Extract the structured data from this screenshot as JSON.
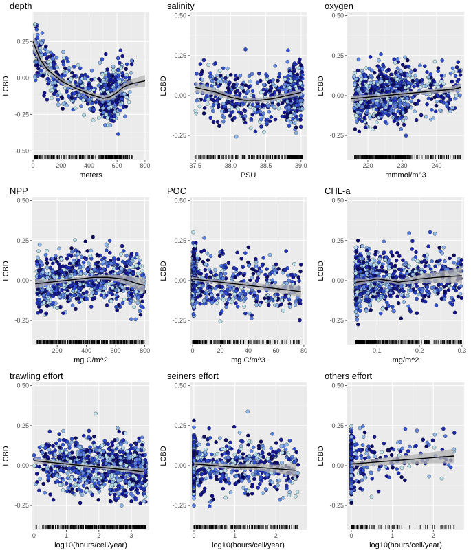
{
  "figure": {
    "ylabel": "LCBD",
    "colors": {
      "panel_bg": "#ebebeb",
      "grid_major": "#ffffff",
      "grid_minor": "#f5f5f5",
      "point_palette": [
        "#0a0a66",
        "#13138c",
        "#1c2bb0",
        "#2e4fd0",
        "#5a80e0",
        "#8fb8ea",
        "#b9dfe8"
      ],
      "point_outline": "#1a1a1a",
      "smooth_line": "#000000",
      "ribbon": "#b3b3b3"
    }
  },
  "chart_data": [
    {
      "type": "scatter",
      "title": "depth",
      "xlabel": "meters",
      "ylabel": "LCBD",
      "xlim": [
        -5,
        830
      ],
      "ylim": [
        -0.56,
        0.45
      ],
      "xticks": [
        0,
        200,
        400,
        600,
        800
      ],
      "yticks": [
        -0.5,
        -0.25,
        0,
        0.25
      ],
      "ytick_labels": [
        "-0.50",
        "-0.25",
        "0.00",
        "0.25"
      ],
      "n_points": 700,
      "x_distribution": "mixed_depth",
      "smooth": {
        "x": [
          0,
          50,
          100,
          150,
          200,
          300,
          400,
          500,
          550,
          600,
          650,
          700,
          750,
          800
        ],
        "y": [
          0.25,
          0.13,
          0.06,
          0.02,
          -0.02,
          -0.07,
          -0.11,
          -0.14,
          -0.13,
          -0.1,
          -0.06,
          -0.04,
          -0.03,
          -0.02
        ],
        "se": [
          0.06,
          0.03,
          0.025,
          0.02,
          0.02,
          0.015,
          0.015,
          0.02,
          0.02,
          0.02,
          0.025,
          0.03,
          0.035,
          0.04
        ]
      }
    },
    {
      "type": "scatter",
      "title": "salinity",
      "xlabel": "PSU",
      "ylabel": "LCBD",
      "xlim": [
        37.42,
        39.08
      ],
      "ylim": [
        -0.4,
        0.52
      ],
      "xticks": [
        37.5,
        38.0,
        38.5,
        39.0
      ],
      "xtick_labels": [
        "37.5",
        "38.0",
        "38.5",
        "39.0"
      ],
      "yticks": [
        -0.25,
        0,
        0.25,
        0.5
      ],
      "ytick_labels": [
        "-0.25",
        "0.00",
        "0.25",
        "0.50"
      ],
      "n_points": 650,
      "x_distribution": "salinity",
      "smooth": {
        "x": [
          37.5,
          37.8,
          38.0,
          38.2,
          38.4,
          38.6,
          38.8,
          39.0
        ],
        "y": [
          0.05,
          0.02,
          -0.01,
          -0.03,
          -0.03,
          -0.02,
          0.0,
          0.02
        ],
        "se": [
          0.03,
          0.02,
          0.015,
          0.015,
          0.015,
          0.015,
          0.015,
          0.02
        ]
      }
    },
    {
      "type": "scatter",
      "title": "oxygen",
      "xlabel": "mmmol/m^3",
      "ylabel": "LCBD",
      "xlim": [
        214,
        248
      ],
      "ylim": [
        -0.4,
        0.52
      ],
      "xticks": [
        220,
        230,
        240
      ],
      "yticks": [
        -0.25,
        0,
        0.25,
        0.5
      ],
      "ytick_labels": [
        "-0.25",
        "0.00",
        "0.25",
        "0.50"
      ],
      "n_points": 800,
      "x_distribution": "oxygen",
      "smooth": {
        "x": [
          215,
          220,
          225,
          230,
          235,
          240,
          245,
          247
        ],
        "y": [
          -0.02,
          -0.01,
          0.0,
          0.01,
          0.02,
          0.03,
          0.04,
          0.05
        ],
        "se": [
          0.02,
          0.015,
          0.012,
          0.012,
          0.012,
          0.015,
          0.02,
          0.025
        ]
      }
    },
    {
      "type": "scatter",
      "title": "NPP",
      "xlabel": "mg C/m^2",
      "ylabel": "LCBD",
      "xlim": [
        30,
        830
      ],
      "ylim": [
        -0.4,
        0.52
      ],
      "xticks": [
        200,
        400,
        600,
        800
      ],
      "yticks": [
        -0.25,
        0,
        0.25,
        0.5
      ],
      "ytick_labels": [
        "-0.25",
        "0.00",
        "0.25",
        "0.50"
      ],
      "n_points": 800,
      "x_distribution": "npp",
      "smooth": {
        "x": [
          50,
          150,
          250,
          350,
          450,
          550,
          650,
          750,
          800
        ],
        "y": [
          -0.02,
          -0.01,
          0.0,
          0.01,
          0.02,
          0.02,
          0.01,
          -0.02,
          -0.03
        ],
        "se": [
          0.03,
          0.015,
          0.012,
          0.012,
          0.012,
          0.015,
          0.025,
          0.04,
          0.05
        ]
      }
    },
    {
      "type": "scatter",
      "title": "POC",
      "xlabel": "mg C/m^3",
      "ylabel": "LCBD",
      "xlim": [
        -2,
        82
      ],
      "ylim": [
        -0.4,
        0.52
      ],
      "xticks": [
        0,
        20,
        40,
        60,
        80
      ],
      "yticks": [
        -0.25,
        0,
        0.25,
        0.5
      ],
      "ytick_labels": [
        "-0.25",
        "0.00",
        "0.25",
        "0.50"
      ],
      "n_points": 800,
      "x_distribution": "poc",
      "smooth": {
        "x": [
          0,
          10,
          20,
          30,
          40,
          50,
          60,
          70,
          78
        ],
        "y": [
          0.01,
          0.0,
          -0.01,
          -0.02,
          -0.03,
          -0.04,
          -0.05,
          -0.06,
          -0.07
        ],
        "se": [
          0.012,
          0.012,
          0.015,
          0.015,
          0.018,
          0.02,
          0.025,
          0.03,
          0.035
        ]
      }
    },
    {
      "type": "scatter",
      "title": "CHL-a",
      "xlabel": "mg/m^2",
      "ylabel": "LCBD",
      "xlim": [
        0.03,
        0.305
      ],
      "ylim": [
        -0.4,
        0.52
      ],
      "xticks": [
        0.1,
        0.2,
        0.3
      ],
      "yticks": [
        -0.25,
        0,
        0.25,
        0.5
      ],
      "ytick_labels": [
        "-0.25",
        "0.00",
        "0.25",
        "0.50"
      ],
      "n_points": 800,
      "x_distribution": "chl",
      "smooth": {
        "x": [
          0.05,
          0.08,
          0.1,
          0.13,
          0.15,
          0.18,
          0.2,
          0.24,
          0.3
        ],
        "y": [
          -0.01,
          0.0,
          0.01,
          0.0,
          -0.01,
          0.0,
          0.01,
          0.02,
          0.03
        ],
        "se": [
          0.025,
          0.012,
          0.012,
          0.015,
          0.015,
          0.02,
          0.025,
          0.035,
          0.05
        ]
      }
    },
    {
      "type": "scatter",
      "title": "trawling effort",
      "xlabel": "log10(hours/cell/year)",
      "ylabel": "LCBD",
      "xlim": [
        -0.05,
        3.55
      ],
      "ylim": [
        -0.4,
        0.52
      ],
      "xticks": [
        0,
        1,
        2,
        3
      ],
      "yticks": [
        -0.25,
        0,
        0.25,
        0.5
      ],
      "ytick_labels": [
        "-0.25",
        "0.00",
        "0.25",
        "0.50"
      ],
      "n_points": 850,
      "x_distribution": "trawl",
      "smooth": {
        "x": [
          0,
          0.5,
          1,
          1.5,
          2,
          2.5,
          3,
          3.4
        ],
        "y": [
          0.03,
          0.02,
          0.01,
          0.0,
          -0.01,
          -0.02,
          -0.03,
          -0.04
        ],
        "se": [
          0.02,
          0.012,
          0.01,
          0.01,
          0.01,
          0.012,
          0.015,
          0.02
        ]
      }
    },
    {
      "type": "scatter",
      "title": "seiners effort",
      "xlabel": "log10(hours/cell/year)",
      "ylabel": "LCBD",
      "xlim": [
        -0.1,
        2.75
      ],
      "ylim": [
        -0.4,
        0.52
      ],
      "xticks": [
        0,
        1,
        2
      ],
      "yticks": [
        -0.25,
        0,
        0.25,
        0.5
      ],
      "ytick_labels": [
        "-0.25",
        "0.00",
        "0.25",
        "0.50"
      ],
      "n_points": 750,
      "x_distribution": "seine",
      "smooth": {
        "x": [
          0,
          0.5,
          1,
          1.5,
          2,
          2.5
        ],
        "y": [
          0.01,
          0.0,
          -0.01,
          -0.01,
          -0.02,
          -0.03
        ],
        "se": [
          0.012,
          0.015,
          0.015,
          0.02,
          0.025,
          0.04
        ]
      }
    },
    {
      "type": "scatter",
      "title": "others effort",
      "xlabel": "log10(hours/cell/year)",
      "ylabel": "LCBD",
      "xlim": [
        -0.1,
        2.75
      ],
      "ylim": [
        -0.4,
        0.52
      ],
      "xticks": [
        0,
        1,
        2
      ],
      "yticks": [
        -0.25,
        0,
        0.25,
        0.5
      ],
      "ytick_labels": [
        "-0.25",
        "0.00",
        "0.25",
        "0.50"
      ],
      "n_points": 500,
      "x_distribution": "others",
      "smooth": {
        "x": [
          0,
          0.5,
          1,
          1.5,
          2,
          2.5
        ],
        "y": [
          0.01,
          0.02,
          0.03,
          0.04,
          0.05,
          0.06
        ],
        "se": [
          0.01,
          0.02,
          0.025,
          0.03,
          0.035,
          0.045
        ]
      }
    }
  ]
}
